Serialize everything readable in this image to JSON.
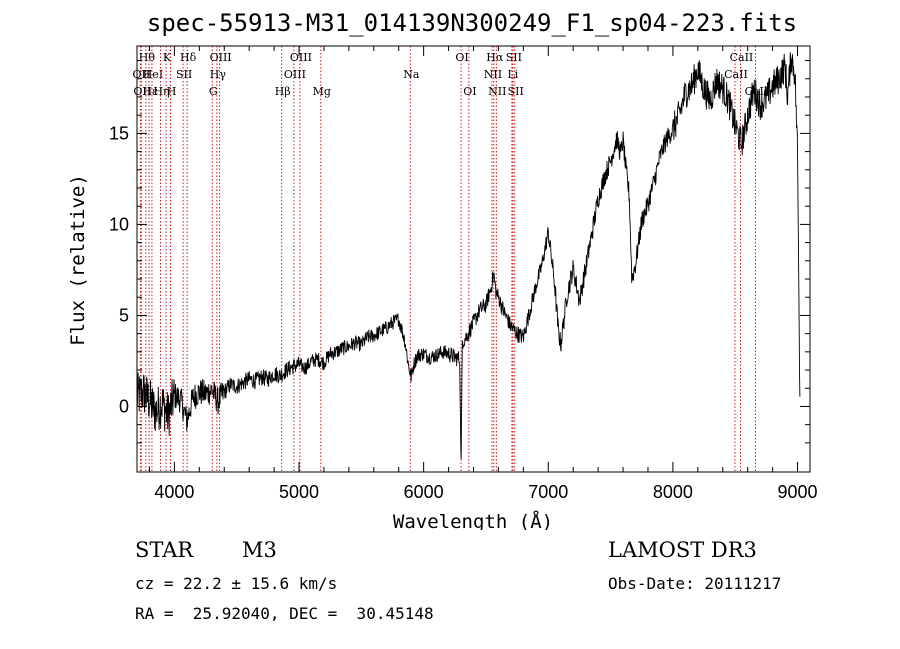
{
  "title": "spec-55913-M31_014139N300249_F1_sp04-223.fits",
  "classification": {
    "class": "STAR",
    "subclass": "M3"
  },
  "survey": "LAMOST DR3",
  "redshift": "cz = 22.2 ± 15.6 km/s",
  "obs_date": "Obs-Date: 20111217",
  "coords": "RA =  25.92040, DEC =  30.45148",
  "colors": {
    "spectrum": "#000000",
    "line_marker": "#cc0000",
    "axes": "#000000"
  },
  "chart_data": {
    "type": "line",
    "title": "spec-55913-M31_014139N300249_F1_sp04-223.fits",
    "xlabel": "Wavelength (Å)",
    "ylabel": "Flux (relative)",
    "xlim": [
      3700,
      9100
    ],
    "ylim": [
      -3.6,
      19.8
    ],
    "xticks": [
      4000,
      5000,
      6000,
      7000,
      8000,
      9000
    ],
    "yticks": [
      0,
      5,
      10,
      15
    ],
    "grid": false,
    "series": [
      {
        "name": "flux",
        "x": [
          3700,
          3750,
          3800,
          3850,
          3900,
          3950,
          4000,
          4050,
          4100,
          4150,
          4200,
          4250,
          4300,
          4350,
          4400,
          4450,
          4500,
          4550,
          4600,
          4650,
          4700,
          4750,
          4800,
          4850,
          4900,
          4950,
          5000,
          5050,
          5100,
          5150,
          5200,
          5250,
          5300,
          5350,
          5400,
          5450,
          5500,
          5550,
          5600,
          5650,
          5700,
          5750,
          5800,
          5850,
          5880,
          5900,
          5920,
          5950,
          6000,
          6050,
          6100,
          6150,
          6200,
          6250,
          6290,
          6300,
          6310,
          6330,
          6350,
          6400,
          6450,
          6500,
          6540,
          6563,
          6580,
          6600,
          6650,
          6700,
          6750,
          6800,
          6850,
          6900,
          6950,
          7000,
          7050,
          7080,
          7100,
          7130,
          7150,
          7200,
          7250,
          7300,
          7350,
          7400,
          7450,
          7500,
          7550,
          7580,
          7600,
          7620,
          7650,
          7670,
          7700,
          7750,
          7800,
          7850,
          7900,
          7950,
          8000,
          8050,
          8100,
          8150,
          8200,
          8250,
          8300,
          8350,
          8400,
          8450,
          8500,
          8550,
          8600,
          8650,
          8700,
          8750,
          8800,
          8850,
          8900,
          8920,
          8950,
          8980,
          9000,
          9020
        ],
        "y": [
          0.5,
          0.8,
          0.3,
          -0.3,
          0.2,
          -0.5,
          0.6,
          0.4,
          -0.8,
          0.5,
          0.8,
          0.7,
          0.9,
          0.3,
          0.8,
          1.2,
          1.1,
          1.3,
          1.5,
          1.4,
          1.6,
          1.5,
          1.8,
          1.7,
          2.0,
          2.2,
          2.3,
          2.1,
          2.5,
          2.6,
          2.4,
          2.9,
          3.0,
          3.2,
          3.3,
          3.5,
          3.4,
          3.8,
          3.9,
          4.1,
          4.3,
          4.6,
          4.8,
          3.6,
          2.2,
          1.6,
          2.3,
          2.8,
          2.9,
          2.7,
          2.8,
          3.0,
          2.9,
          2.7,
          2.6,
          -3.6,
          3.6,
          3.7,
          3.9,
          4.6,
          5.3,
          5.6,
          6.5,
          7.3,
          6.3,
          6.0,
          5.1,
          4.4,
          4.0,
          3.8,
          5.2,
          6.6,
          7.8,
          9.6,
          6.8,
          4.2,
          3.4,
          5.0,
          6.1,
          7.6,
          5.8,
          7.6,
          9.5,
          11.4,
          12.6,
          13.5,
          14.7,
          13.9,
          14.6,
          13.2,
          11.6,
          7.0,
          7.8,
          10.2,
          11.1,
          12.4,
          13.8,
          14.7,
          15.2,
          16.0,
          17.2,
          17.6,
          18.5,
          17.4,
          16.8,
          17.9,
          17.5,
          16.7,
          15.4,
          14.4,
          16.0,
          17.4,
          16.6,
          16.9,
          17.6,
          18.0,
          18.7,
          17.0,
          19.3,
          18.2,
          14.0,
          -0.2
        ]
      }
    ],
    "line_markers": [
      {
        "wavelength": 3727,
        "label": "OII",
        "row": 1
      },
      {
        "wavelength": 3734,
        "label": "OII",
        "row": 2
      },
      {
        "wavelength": 3771,
        "label": "Hθ",
        "row": 0
      },
      {
        "wavelength": 3797,
        "label": "Hε",
        "row": 2
      },
      {
        "wavelength": 3820,
        "label": "HeI",
        "row": 1
      },
      {
        "wavelength": 3889,
        "label": "Hη",
        "row": 2
      },
      {
        "wavelength": 3933,
        "label": "K",
        "row": 0
      },
      {
        "wavelength": 3969,
        "label": "H",
        "row": 2
      },
      {
        "wavelength": 4070,
        "label": "SII",
        "row": 1
      },
      {
        "wavelength": 4102,
        "label": "Hδ",
        "row": 0
      },
      {
        "wavelength": 4304,
        "label": "G",
        "row": 2
      },
      {
        "wavelength": 4341,
        "label": "Hγ",
        "row": 1
      },
      {
        "wavelength": 4363,
        "label": "OIII",
        "row": 0
      },
      {
        "wavelength": 4861,
        "label": "Hβ",
        "row": 2
      },
      {
        "wavelength": 4959,
        "label": "OIII",
        "row": 1
      },
      {
        "wavelength": 5007,
        "label": "OIII",
        "row": 0
      },
      {
        "wavelength": 5175,
        "label": "Mg",
        "row": 2
      },
      {
        "wavelength": 5893,
        "label": "Na",
        "row": 1
      },
      {
        "wavelength": 6300,
        "label": "OI",
        "row": 0
      },
      {
        "wavelength": 6363,
        "label": "OI",
        "row": 2
      },
      {
        "wavelength": 6548,
        "label": "NII",
        "row": 1
      },
      {
        "wavelength": 6563,
        "label": "Hα",
        "row": 0
      },
      {
        "wavelength": 6583,
        "label": "NII",
        "row": 2
      },
      {
        "wavelength": 6708,
        "label": "Li",
        "row": 1
      },
      {
        "wavelength": 6716,
        "label": "SII",
        "row": 0
      },
      {
        "wavelength": 6731,
        "label": "SII",
        "row": 2
      },
      {
        "wavelength": 8498,
        "label": "CaII",
        "row": 1
      },
      {
        "wavelength": 8542,
        "label": "CaII",
        "row": 0
      },
      {
        "wavelength": 8662,
        "label": "CaII",
        "row": 2
      }
    ]
  }
}
